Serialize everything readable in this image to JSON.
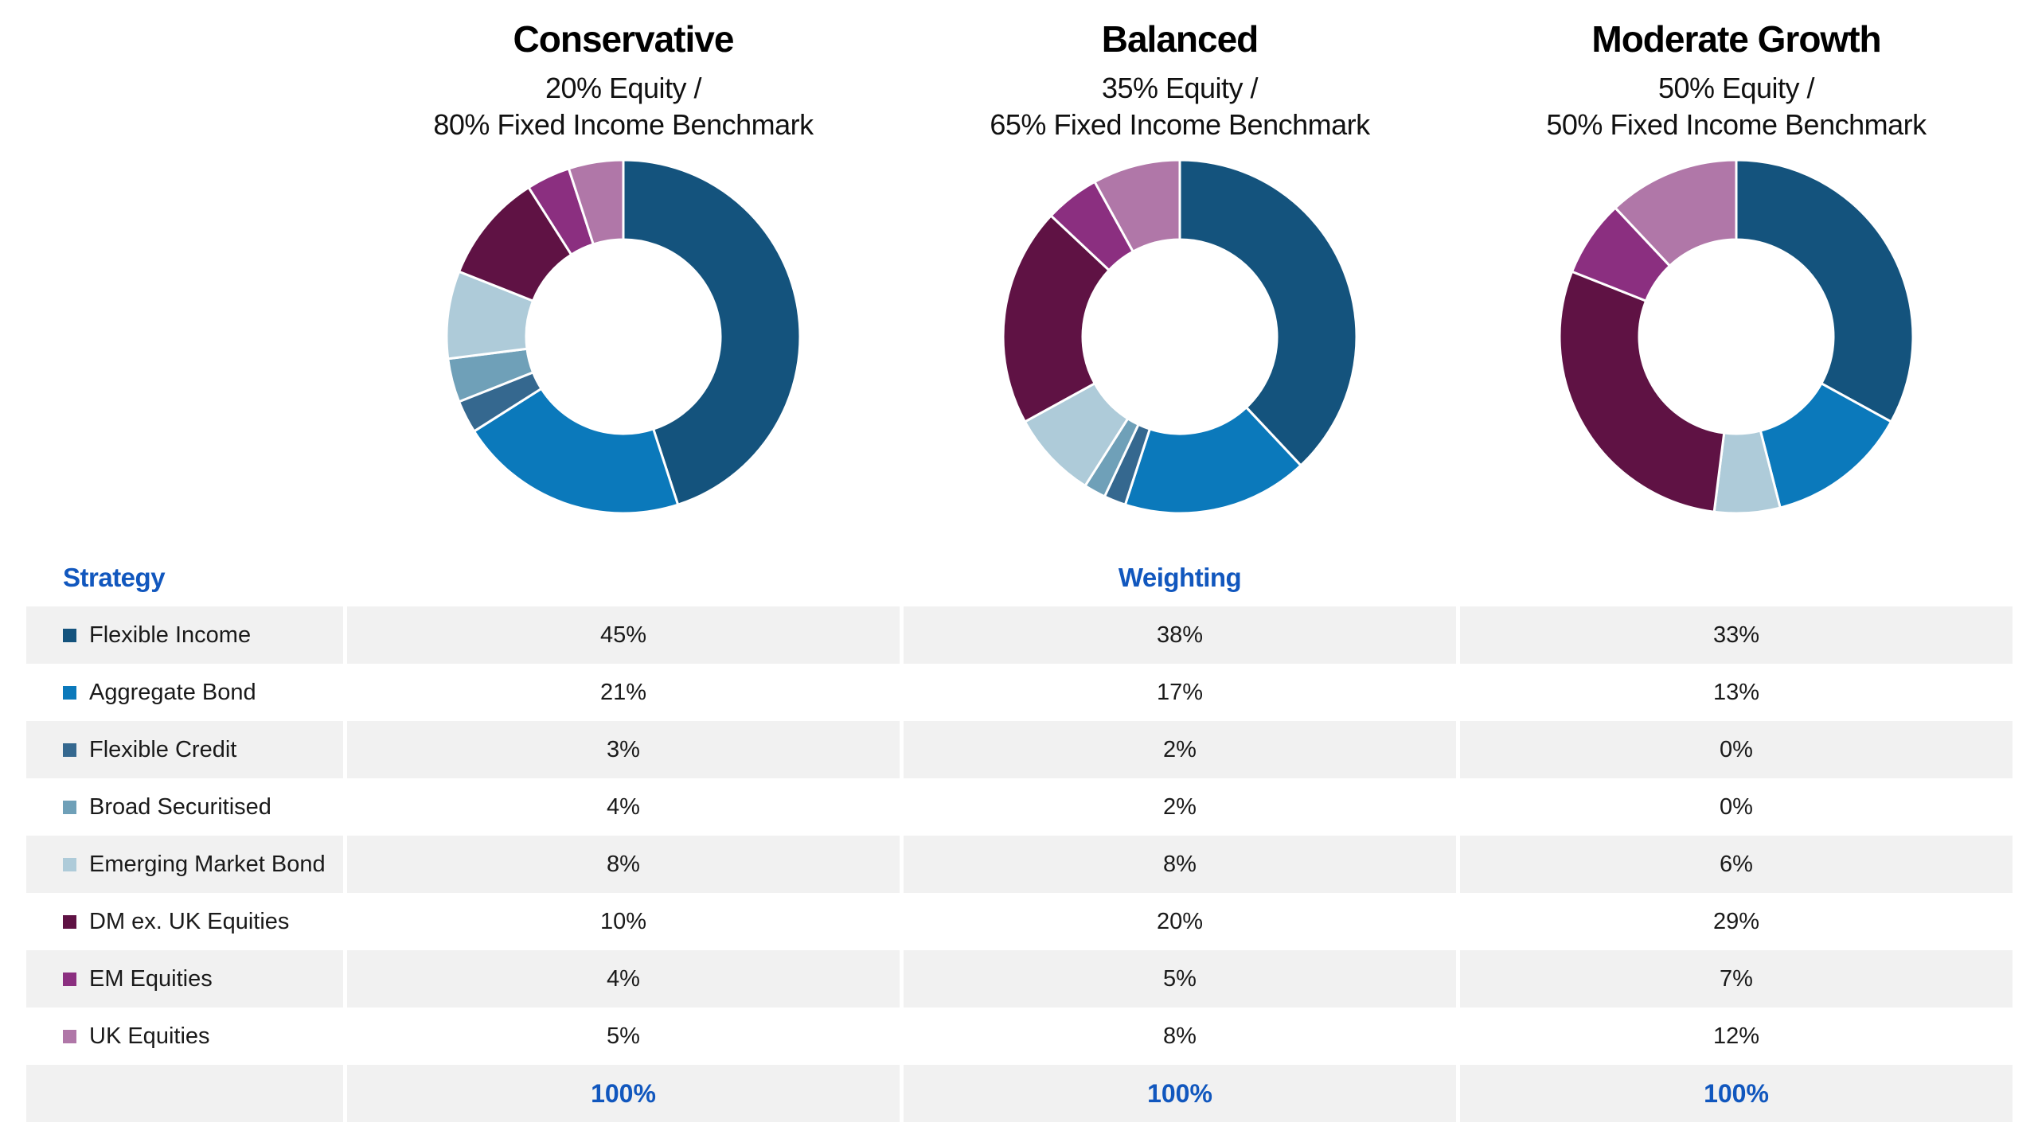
{
  "accent_blue": "#1157be",
  "row_stripe_color": "#f1f1f1",
  "chart_data": [
    {
      "type": "donut",
      "title": "Conservative",
      "subtitle_lines": [
        "20% Equity /",
        "80% Fixed Income Benchmark"
      ],
      "categories": [
        "Flexible Income",
        "Aggregate Bond",
        "Flexible Credit",
        "Broad Securitised",
        "Emerging Market Bond",
        "DM ex. UK Equities",
        "EM Equities",
        "UK Equities"
      ],
      "values": [
        45,
        21,
        3,
        4,
        8,
        10,
        4,
        5
      ],
      "colors": [
        "#14537d",
        "#0b79bb",
        "#35688f",
        "#6fa0b8",
        "#aecbd9",
        "#5f1244",
        "#8b2f80",
        "#b077a8"
      ],
      "total": "100%"
    },
    {
      "type": "donut",
      "title": "Balanced",
      "subtitle_lines": [
        "35% Equity /",
        "65% Fixed Income Benchmark"
      ],
      "categories": [
        "Flexible Income",
        "Aggregate Bond",
        "Flexible Credit",
        "Broad Securitised",
        "Emerging Market Bond",
        "DM ex. UK Equities",
        "EM Equities",
        "UK Equities"
      ],
      "values": [
        38,
        17,
        2,
        2,
        8,
        20,
        5,
        8
      ],
      "colors": [
        "#14537d",
        "#0b79bb",
        "#35688f",
        "#6fa0b8",
        "#aecbd9",
        "#5f1244",
        "#8b2f80",
        "#b077a8"
      ],
      "total": "100%"
    },
    {
      "type": "donut",
      "title": "Moderate Growth",
      "subtitle_lines": [
        "50% Equity /",
        "50% Fixed Income Benchmark"
      ],
      "categories": [
        "Flexible Income",
        "Aggregate Bond",
        "Flexible Credit",
        "Broad Securitised",
        "Emerging Market Bond",
        "DM ex. UK Equities",
        "EM Equities",
        "UK Equities"
      ],
      "values": [
        33,
        13,
        0,
        0,
        6,
        29,
        7,
        12
      ],
      "colors": [
        "#14537d",
        "#0b79bb",
        "#35688f",
        "#6fa0b8",
        "#aecbd9",
        "#5f1244",
        "#8b2f80",
        "#b077a8"
      ],
      "total": "100%"
    }
  ],
  "table": {
    "header_strategy": "Strategy",
    "header_weighting": "Weighting",
    "rows": [
      {
        "label": "Flexible Income",
        "color": "#14537d",
        "values": [
          "45%",
          "38%",
          "33%"
        ]
      },
      {
        "label": "Aggregate Bond",
        "color": "#0b79bb",
        "values": [
          "21%",
          "17%",
          "13%"
        ]
      },
      {
        "label": "Flexible Credit",
        "color": "#35688f",
        "values": [
          "3%",
          "2%",
          "0%"
        ]
      },
      {
        "label": "Broad Securitised",
        "color": "#6fa0b8",
        "values": [
          "4%",
          "2%",
          "0%"
        ]
      },
      {
        "label": "Emerging Market Bond",
        "color": "#aecbd9",
        "values": [
          "8%",
          "8%",
          "6%"
        ]
      },
      {
        "label": "DM ex. UK Equities",
        "color": "#5f1244",
        "values": [
          "10%",
          "20%",
          "29%"
        ]
      },
      {
        "label": "EM Equities",
        "color": "#8b2f80",
        "values": [
          "4%",
          "5%",
          "7%"
        ]
      },
      {
        "label": "UK Equities",
        "color": "#b077a8",
        "values": [
          "5%",
          "8%",
          "12%"
        ]
      }
    ],
    "total": {
      "values": [
        "100%",
        "100%",
        "100%"
      ]
    }
  }
}
